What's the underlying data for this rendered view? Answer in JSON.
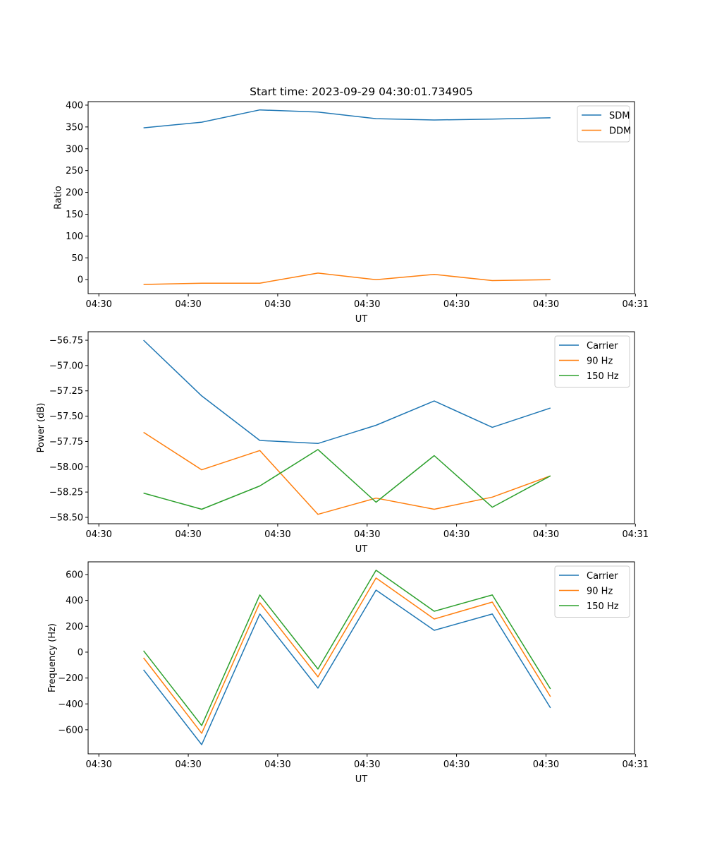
{
  "chart_data": [
    {
      "type": "line",
      "title": "Start time: 2023-09-29 04:30:01.734905",
      "xlabel": "UT",
      "ylabel": "Ratio",
      "x": [
        5.0,
        11.5,
        18.0,
        24.5,
        31.0,
        37.5,
        44.0,
        50.5
      ],
      "xlim": [
        -1.2,
        59.9
      ],
      "xticks": [
        0,
        10,
        20,
        30,
        40,
        50,
        60
      ],
      "xtick_labels": [
        "04:30",
        "04:30",
        "04:30",
        "04:30",
        "04:30",
        "04:30",
        "04:31"
      ],
      "ylim": [
        -32,
        408
      ],
      "yticks": [
        0,
        50,
        100,
        150,
        200,
        250,
        300,
        350,
        400
      ],
      "ytick_labels": [
        "0",
        "50",
        "100",
        "150",
        "200",
        "250",
        "300",
        "350",
        "400"
      ],
      "legend": "top-right",
      "series": [
        {
          "name": "SDM",
          "color": "#1f77b4",
          "values": [
            348,
            361,
            389,
            384,
            369,
            366,
            368,
            371
          ]
        },
        {
          "name": "DDM",
          "color": "#ff7f0e",
          "values": [
            -11,
            -8,
            -8,
            15,
            0,
            12,
            -2,
            0
          ]
        }
      ]
    },
    {
      "type": "line",
      "title": "",
      "xlabel": "UT",
      "ylabel": "Power (dB)",
      "x": [
        5.0,
        11.5,
        18.0,
        24.5,
        31.0,
        37.5,
        44.0,
        50.5
      ],
      "xlim": [
        -1.2,
        59.9
      ],
      "xticks": [
        0,
        10,
        20,
        30,
        40,
        50,
        60
      ],
      "xtick_labels": [
        "04:30",
        "04:30",
        "04:30",
        "04:30",
        "04:30",
        "04:30",
        "04:31"
      ],
      "ylim": [
        -58.563,
        -56.666
      ],
      "yticks": [
        -56.75,
        -57.0,
        -57.25,
        -57.5,
        -57.75,
        -58.0,
        -58.25,
        -58.5
      ],
      "ytick_labels": [
        "−56.75",
        "−57.00",
        "−57.25",
        "−57.50",
        "−57.75",
        "−58.00",
        "−58.25",
        "−58.50"
      ],
      "legend": "top-right",
      "series": [
        {
          "name": "Carrier",
          "color": "#1f77b4",
          "values": [
            -56.75,
            -57.3,
            -57.74,
            -57.77,
            -57.59,
            -57.35,
            -57.61,
            -57.42
          ]
        },
        {
          "name": "90 Hz",
          "color": "#ff7f0e",
          "values": [
            -57.66,
            -58.03,
            -57.84,
            -58.47,
            -58.31,
            -58.42,
            -58.3,
            -58.09
          ]
        },
        {
          "name": "150 Hz",
          "color": "#2ca02c",
          "values": [
            -58.26,
            -58.42,
            -58.19,
            -57.83,
            -58.35,
            -57.89,
            -58.4,
            -58.09
          ]
        }
      ]
    },
    {
      "type": "line",
      "title": "",
      "xlabel": "UT",
      "ylabel": "Frequency (Hz)",
      "x": [
        5.0,
        11.5,
        18.0,
        24.5,
        31.0,
        37.5,
        44.0,
        50.5
      ],
      "xlim": [
        -1.2,
        59.9
      ],
      "xticks": [
        0,
        10,
        20,
        30,
        40,
        50,
        60
      ],
      "xtick_labels": [
        "04:30",
        "04:30",
        "04:30",
        "04:30",
        "04:30",
        "04:30",
        "04:31"
      ],
      "ylim": [
        -786,
        698
      ],
      "yticks": [
        600,
        400,
        200,
        0,
        -200,
        -400,
        -600
      ],
      "ytick_labels": [
        "600",
        "400",
        "200",
        "0",
        "−200",
        "−400",
        "−600"
      ],
      "legend": "top-right",
      "series": [
        {
          "name": "Carrier",
          "color": "#1f77b4",
          "values": [
            -136,
            -715,
            295,
            -278,
            480,
            169,
            295,
            -431
          ]
        },
        {
          "name": "90 Hz",
          "color": "#ff7f0e",
          "values": [
            -44,
            -627,
            382,
            -191,
            573,
            256,
            387,
            -344
          ]
        },
        {
          "name": "150 Hz",
          "color": "#2ca02c",
          "values": [
            11,
            -567,
            442,
            -131,
            633,
            316,
            442,
            -284
          ]
        }
      ]
    }
  ]
}
